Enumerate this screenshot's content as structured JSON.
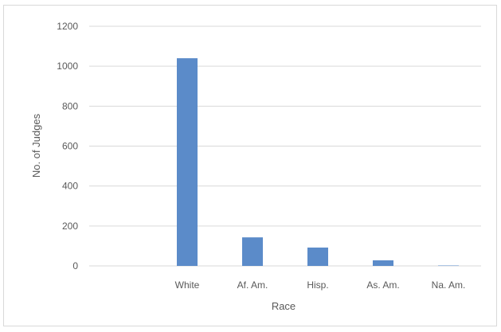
{
  "chart_data": {
    "type": "bar",
    "categories": [
      "",
      "White",
      "Af. Am.",
      "Hisp.",
      "As. Am.",
      "Na. Am."
    ],
    "values": [
      0,
      1040,
      143,
      92,
      28,
      2
    ],
    "title": "",
    "xlabel": "Race",
    "ylabel": "No. of Judges",
    "ylim": [
      0,
      1200
    ],
    "yticks": [
      0,
      200,
      400,
      600,
      800,
      1000,
      1200
    ],
    "grid": true,
    "colors": {
      "bar": "#5b8bc9",
      "grid": "#d9d9d9",
      "text": "#595959"
    }
  }
}
